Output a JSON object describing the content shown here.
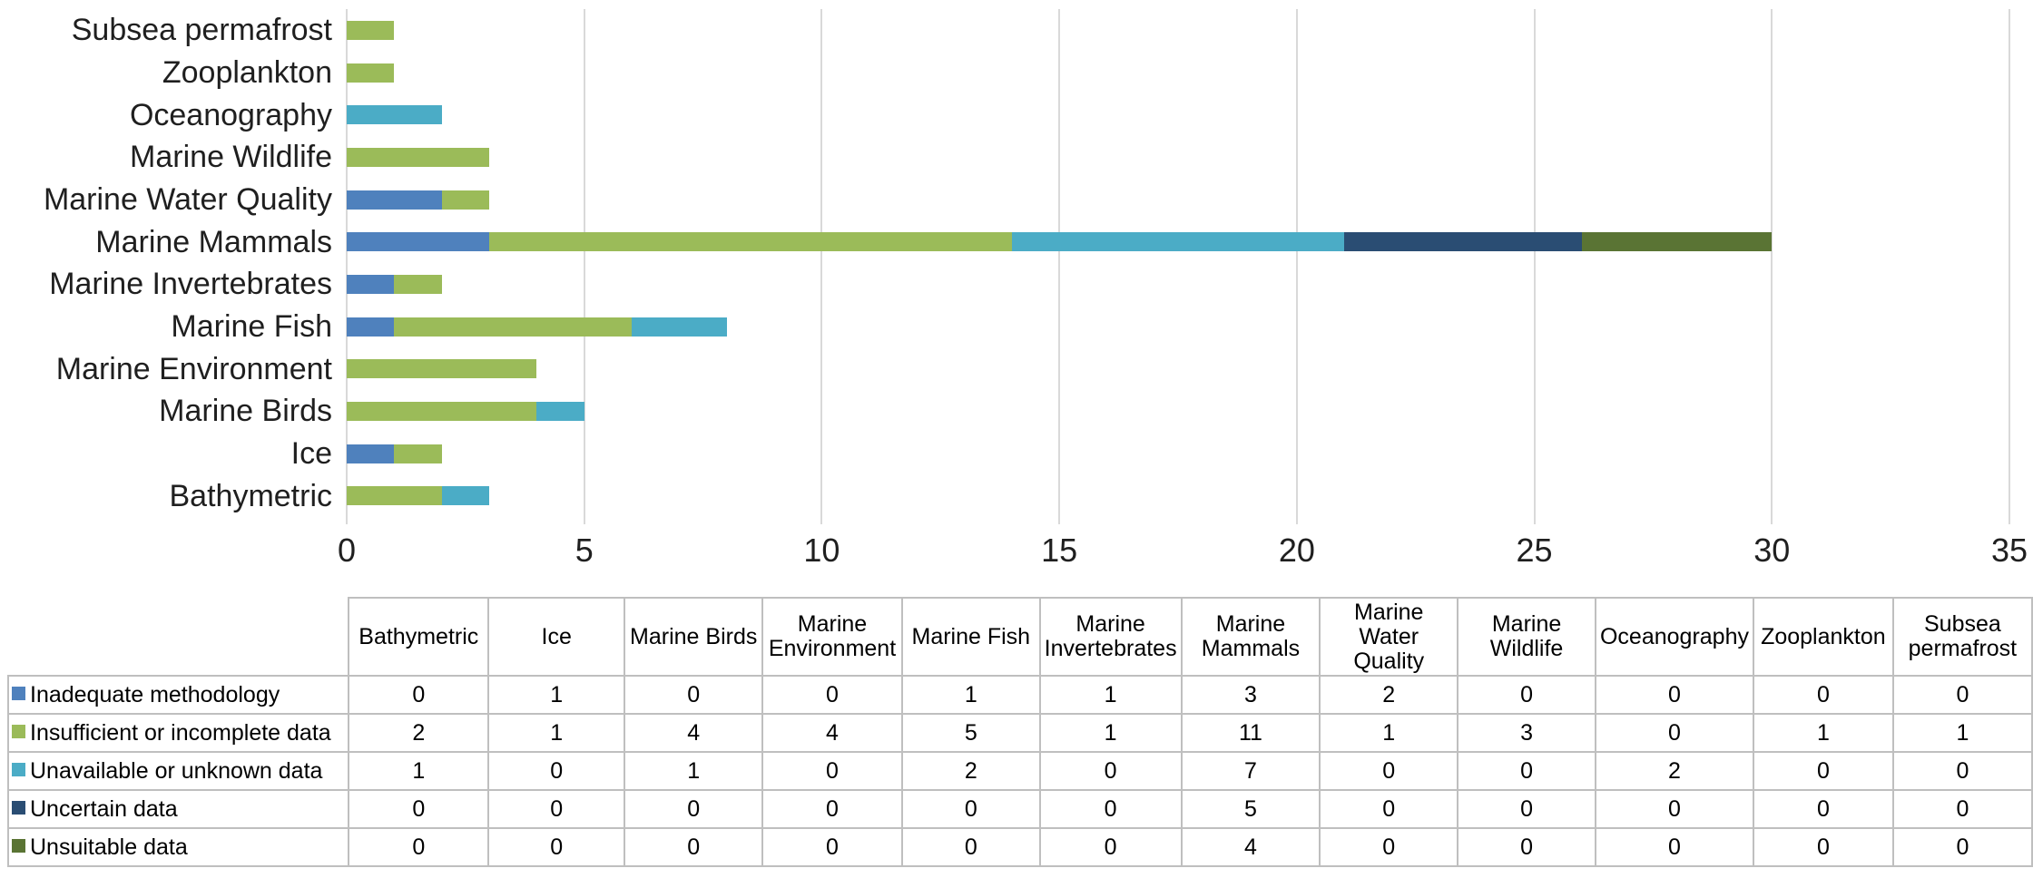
{
  "chart_data": {
    "type": "bar",
    "orientation": "horizontal",
    "stacked": true,
    "title": "",
    "xlabel": "",
    "ylabel": "",
    "xlim": [
      0,
      35
    ],
    "xticks": [
      0,
      5,
      10,
      15,
      20,
      25,
      30,
      35
    ],
    "grid": "vertical-gridlines",
    "legend_position": "table-below-with-color-swatches",
    "categories_top_to_bottom": [
      "Subsea permafrost",
      "Zooplankton",
      "Oceanography",
      "Marine Wildlife",
      "Marine Water Quality",
      "Marine Mammals",
      "Marine Invertebrates",
      "Marine Fish",
      "Marine Environment",
      "Marine Birds",
      "Ice",
      "Bathymetric"
    ],
    "series": [
      {
        "name": "Inadequate methodology",
        "color": "#4F81BD",
        "values": [
          0,
          0,
          0,
          0,
          2,
          3,
          1,
          1,
          0,
          0,
          1,
          0
        ]
      },
      {
        "name": "Insufficient or incomplete data",
        "color": "#9BBB59",
        "values": [
          1,
          1,
          0,
          3,
          1,
          11,
          1,
          5,
          4,
          4,
          1,
          2
        ]
      },
      {
        "name": "Unavailable or unknown data",
        "color": "#4BACC6",
        "values": [
          0,
          0,
          2,
          0,
          0,
          7,
          0,
          2,
          0,
          1,
          0,
          1
        ]
      },
      {
        "name": "Uncertain data",
        "color": "#2A4D73",
        "values": [
          0,
          0,
          0,
          0,
          0,
          5,
          0,
          0,
          0,
          0,
          0,
          0
        ]
      },
      {
        "name": "Unsuitable data",
        "color": "#5A7434",
        "values": [
          0,
          0,
          0,
          0,
          0,
          4,
          0,
          0,
          0,
          0,
          0,
          0
        ]
      }
    ]
  },
  "table": {
    "columns": [
      "Bathymetric",
      "Ice",
      "Marine Birds",
      "Marine Environment",
      "Marine Fish",
      "Marine Invertebrates",
      "Marine Mammals",
      "Marine Water Quality",
      "Marine Wildlife",
      "Oceanography",
      "Zooplankton",
      "Subsea permafrost"
    ],
    "rows": [
      {
        "label": "Inadequate methodology",
        "swatch_color": "#4F81BD",
        "values": [
          "0",
          "1",
          "0",
          "0",
          "1",
          "1",
          "3",
          "2",
          "0",
          "0",
          "0",
          "0"
        ]
      },
      {
        "label": "Insufficient or incomplete data",
        "swatch_color": "#9BBB59",
        "values": [
          "2",
          "1",
          "4",
          "4",
          "5",
          "1",
          "11",
          "1",
          "3",
          "0",
          "1",
          "1"
        ]
      },
      {
        "label": "Unavailable or unknown data",
        "swatch_color": "#4BACC6",
        "values": [
          "1",
          "0",
          "1",
          "0",
          "2",
          "0",
          "7",
          "0",
          "0",
          "2",
          "0",
          "0"
        ]
      },
      {
        "label": "Uncertain data",
        "swatch_color": "#2A4D73",
        "values": [
          "0",
          "0",
          "0",
          "0",
          "0",
          "0",
          "5",
          "0",
          "0",
          "0",
          "0",
          "0"
        ]
      },
      {
        "label": "Unsuitable data",
        "swatch_color": "#5A7434",
        "values": [
          "0",
          "0",
          "0",
          "0",
          "0",
          "0",
          "4",
          "0",
          "0",
          "0",
          "0",
          "0"
        ]
      }
    ]
  },
  "style": {
    "gridline_color": "#d9d9d9",
    "axis_text_color": "#1f1f1f",
    "table_border_color": "#bfbfbf"
  }
}
